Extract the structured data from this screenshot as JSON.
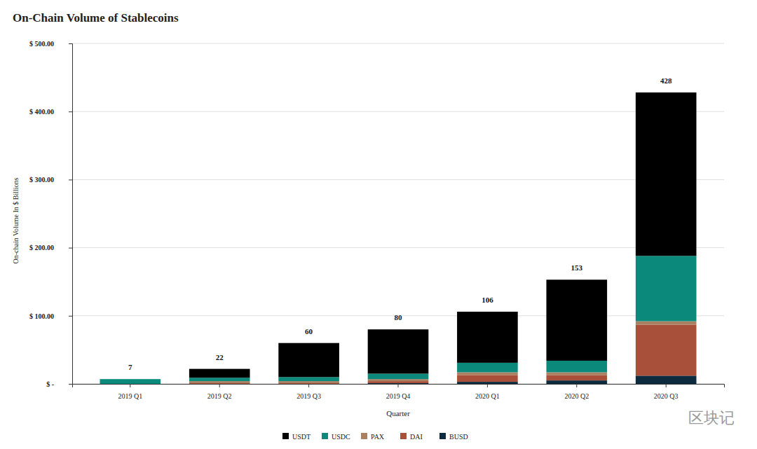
{
  "chart_data": {
    "type": "bar",
    "stacked": true,
    "title": "On-Chain Volume of Stablecoins",
    "x_label": "Quarter",
    "y_label": "On-chain Volume In $ Billions",
    "categories": [
      "2019 Q1",
      "2019 Q2",
      "2019 Q3",
      "2019 Q4",
      "2020 Q1",
      "2020 Q2",
      "2020 Q3"
    ],
    "series": [
      {
        "name": "BUSD",
        "color": "#0d2b3e",
        "values": [
          0,
          0,
          0,
          1,
          3,
          5,
          12
        ]
      },
      {
        "name": "DAI",
        "color": "#a9503a",
        "values": [
          0,
          1,
          1,
          3,
          10,
          8,
          75
        ]
      },
      {
        "name": "PAX",
        "color": "#a98062",
        "values": [
          0,
          3,
          3,
          3,
          4,
          4,
          5
        ]
      },
      {
        "name": "USDC",
        "color": "#0b8a7b",
        "values": [
          7,
          5,
          6,
          8,
          14,
          17,
          96
        ]
      },
      {
        "name": "USDT",
        "color": "#000000",
        "values": [
          0,
          13,
          50,
          65,
          75,
          119,
          240
        ]
      }
    ],
    "totals": [
      7,
      22,
      60,
      80,
      106,
      153,
      428
    ],
    "ylim": [
      0,
      500
    ],
    "yticks": [
      {
        "value": 0,
        "label": "$ -"
      },
      {
        "value": 100,
        "label": "$ 100.00"
      },
      {
        "value": 200,
        "label": "$ 200.00"
      },
      {
        "value": 300,
        "label": "$ 300.00"
      },
      {
        "value": 400,
        "label": "$ 400.00"
      },
      {
        "value": 500,
        "label": "$ 500.00"
      }
    ],
    "grid": true,
    "legend": "bottom",
    "watermark": "区块记"
  }
}
